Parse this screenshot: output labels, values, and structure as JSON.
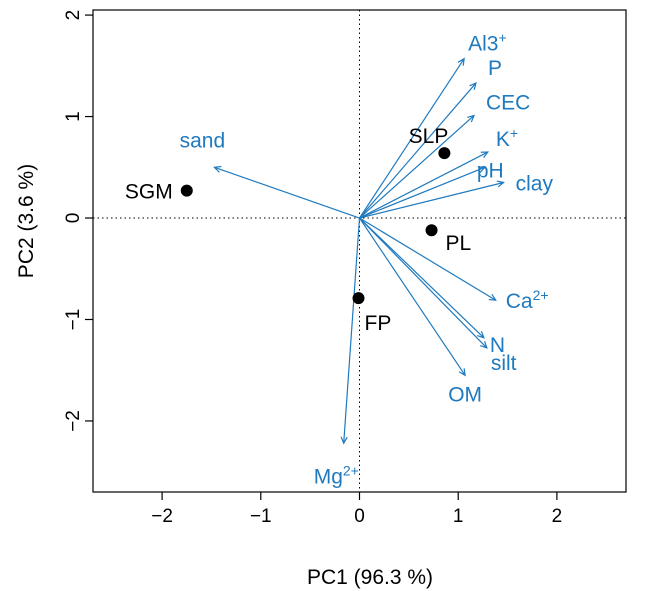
{
  "chart_data": {
    "type": "scatter",
    "subtype": "biplot",
    "xlabel": "PC1 (96.3 %)",
    "ylabel": "PC2  (3.6 %)",
    "xlim": [
      -2.7,
      2.7
    ],
    "ylim": [
      -2.7,
      2.05
    ],
    "xticks": [
      -2,
      -1,
      0,
      1,
      2
    ],
    "xtick_labels": [
      "−2",
      "−1",
      "0",
      "1",
      "2"
    ],
    "yticks": [
      -2,
      -1,
      0,
      1,
      2
    ],
    "ytick_labels": [
      "−2",
      "−1",
      "0",
      "1",
      "2"
    ],
    "reference_lines": {
      "x": 0,
      "y": 0,
      "style": "dotted"
    },
    "colors": {
      "sites": "#000000",
      "loadings": "#1f7abf"
    },
    "sites": [
      {
        "label": "SGM",
        "x": -1.75,
        "y": 0.27
      },
      {
        "label": "SLP",
        "x": 0.86,
        "y": 0.64
      },
      {
        "label": "PL",
        "x": 0.73,
        "y": -0.12
      },
      {
        "label": "FP",
        "x": -0.01,
        "y": -0.79
      }
    ],
    "loadings": [
      {
        "label": "Al3",
        "sup": "+",
        "x": 1.06,
        "y": 1.57
      },
      {
        "label": "P",
        "sup": "",
        "x": 1.18,
        "y": 1.33
      },
      {
        "label": "CEC",
        "sup": "",
        "x": 1.16,
        "y": 1.01
      },
      {
        "label": "K",
        "sup": "+",
        "x": 1.3,
        "y": 0.65
      },
      {
        "label": "pH",
        "sup": "",
        "x": 1.27,
        "y": 0.5
      },
      {
        "label": "clay",
        "sup": "",
        "x": 1.46,
        "y": 0.35
      },
      {
        "label": "sand",
        "sup": "",
        "x": -1.47,
        "y": 0.5
      },
      {
        "label": "Ca",
        "sup": "2+",
        "x": 1.38,
        "y": -0.81
      },
      {
        "label": "N",
        "sup": "",
        "x": 1.26,
        "y": -1.18
      },
      {
        "label": "silt",
        "sup": "",
        "x": 1.29,
        "y": -1.28
      },
      {
        "label": "OM",
        "sup": "",
        "x": 1.07,
        "y": -1.55
      },
      {
        "label": "Mg",
        "sup": "2+",
        "x": -0.16,
        "y": -2.22
      }
    ]
  }
}
